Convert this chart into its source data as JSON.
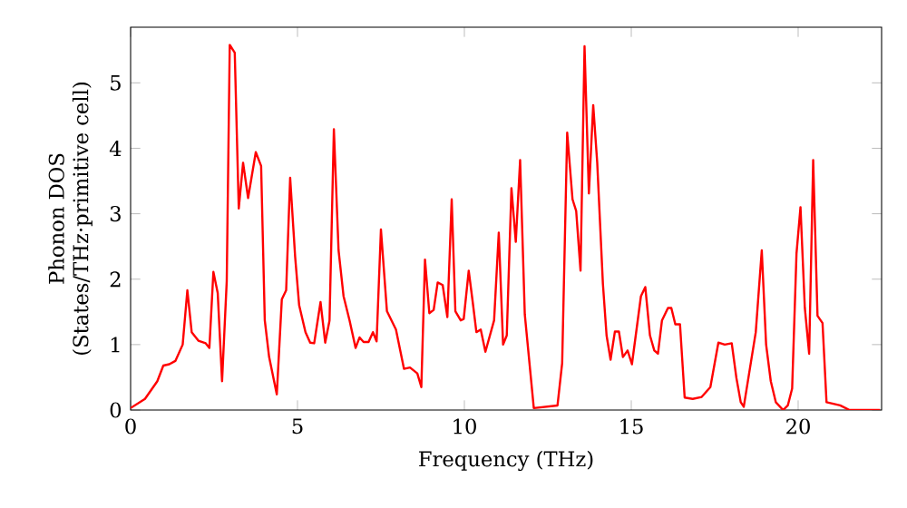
{
  "chart_data": {
    "type": "line",
    "xlabel": "Frequency (THz)",
    "ylabel": "Phonon DOS\n(States/THz·primitive cell)",
    "xlim": [
      0,
      22.5
    ],
    "ylim": [
      0,
      5.85
    ],
    "xticks": [
      0,
      5,
      10,
      15,
      20
    ],
    "yticks": [
      0,
      1,
      2,
      3,
      4,
      5
    ],
    "marker": "none",
    "line_style": "solid",
    "series": [
      {
        "color": "#ff0000",
        "x": [
          0,
          0.43,
          0.8,
          0.98,
          1.16,
          1.34,
          1.56,
          1.7,
          1.83,
          2.03,
          2.25,
          2.36,
          2.48,
          2.61,
          2.74,
          2.88,
          2.97,
          3.12,
          3.24,
          3.37,
          3.52,
          3.75,
          3.91,
          4.02,
          4.15,
          4.38,
          4.53,
          4.66,
          4.78,
          4.93,
          5.05,
          5.24,
          5.38,
          5.5,
          5.69,
          5.83,
          5.96,
          6.09,
          6.23,
          6.38,
          6.56,
          6.74,
          6.86,
          6.98,
          7.13,
          7.26,
          7.37,
          7.5,
          7.68,
          7.95,
          8.19,
          8.37,
          8.59,
          8.71,
          8.82,
          8.95,
          9.08,
          9.2,
          9.35,
          9.49,
          9.62,
          9.73,
          9.89,
          9.98,
          10.13,
          10.25,
          10.36,
          10.49,
          10.63,
          10.89,
          11.03,
          11.16,
          11.27,
          11.41,
          11.54,
          11.67,
          11.81,
          12.08,
          12.79,
          12.93,
          13.08,
          13.24,
          13.35,
          13.48,
          13.6,
          13.73,
          13.86,
          13.98,
          14.15,
          14.26,
          14.38,
          14.51,
          14.63,
          14.75,
          14.89,
          15.02,
          15.29,
          15.42,
          15.56,
          15.69,
          15.8,
          15.92,
          16.1,
          16.2,
          16.32,
          16.46,
          16.6,
          16.84,
          17.11,
          17.37,
          17.61,
          17.8,
          18.01,
          18.15,
          18.28,
          18.37,
          18.73,
          18.91,
          19.04,
          19.18,
          19.33,
          19.55,
          19.69,
          19.82,
          19.95,
          20.07,
          20.2,
          20.33,
          20.45,
          20.58,
          20.73,
          20.85,
          21.26,
          21.54,
          22.45
        ],
        "values": [
          0.03,
          0.17,
          0.44,
          0.68,
          0.7,
          0.75,
          1.0,
          1.83,
          1.19,
          1.06,
          1.02,
          0.95,
          2.11,
          1.79,
          0.44,
          1.97,
          5.58,
          5.46,
          3.08,
          3.78,
          3.24,
          3.94,
          3.73,
          1.37,
          0.81,
          0.24,
          1.69,
          1.83,
          3.55,
          2.34,
          1.6,
          1.19,
          1.03,
          1.02,
          1.65,
          1.03,
          1.37,
          4.29,
          2.44,
          1.74,
          1.37,
          0.95,
          1.11,
          1.04,
          1.04,
          1.19,
          1.05,
          2.76,
          1.51,
          1.23,
          0.63,
          0.65,
          0.56,
          0.35,
          2.3,
          1.48,
          1.53,
          1.95,
          1.91,
          1.42,
          3.22,
          1.51,
          1.37,
          1.39,
          2.13,
          1.65,
          1.19,
          1.23,
          0.89,
          1.37,
          2.71,
          1.0,
          1.14,
          3.39,
          2.57,
          3.82,
          1.46,
          0.03,
          0.07,
          0.72,
          4.24,
          3.22,
          3.04,
          2.13,
          5.56,
          3.31,
          4.66,
          3.78,
          1.93,
          1.14,
          0.77,
          1.2,
          1.2,
          0.81,
          0.91,
          0.7,
          1.74,
          1.88,
          1.14,
          0.91,
          0.86,
          1.37,
          1.56,
          1.56,
          1.31,
          1.31,
          0.19,
          0.17,
          0.2,
          0.35,
          1.03,
          1.0,
          1.02,
          0.49,
          0.12,
          0.05,
          1.19,
          2.44,
          1.0,
          0.44,
          0.12,
          0.0,
          0.07,
          0.33,
          2.39,
          3.1,
          1.56,
          0.86,
          3.82,
          1.44,
          1.33,
          0.12,
          0.07,
          0.0,
          0.0
        ]
      }
    ]
  }
}
